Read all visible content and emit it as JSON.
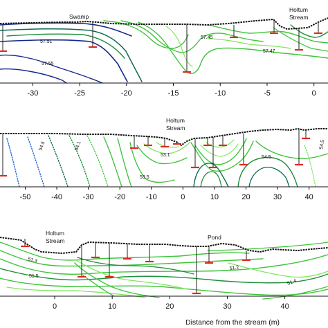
{
  "chart_data": [
    {
      "type": "contour",
      "panel": "top",
      "x_ticks": [
        -30,
        -25,
        -20,
        -15,
        -10,
        -5,
        0
      ],
      "xlim": [
        -33.5,
        1.5
      ],
      "features": [
        "Swamp",
        "Holtum\nStream"
      ],
      "contour_labels": [
        "57.51",
        "57.45",
        "57.47",
        "57.55"
      ],
      "grid": false
    },
    {
      "type": "contour",
      "panel": "middle",
      "x_ticks": [
        -50,
        -40,
        -30,
        -20,
        -10,
        0,
        10,
        20,
        30,
        40
      ],
      "xlim": [
        -58,
        46
      ],
      "features": [
        "Holtum\nStream"
      ],
      "contour_labels": [
        "54.5",
        "54.1",
        "53.1",
        "53.5",
        "54.5",
        "54.5"
      ],
      "grid": false
    },
    {
      "type": "contour",
      "panel": "bottom",
      "x_ticks": [
        0,
        10,
        20,
        30,
        40
      ],
      "xlim": [
        -9.5,
        47.5
      ],
      "features": [
        "Holtum\nStream",
        "Pond"
      ],
      "contour_labels": [
        "51.3",
        "51.5",
        "51.2",
        "51.4"
      ],
      "xlabel": "Distance from the stream (m)",
      "grid": false
    }
  ],
  "colors": {
    "dark_blue": "#14288c",
    "blue": "#2a6ad8",
    "teal": "#0e6b52",
    "dark_green": "#1f8f3a",
    "green": "#3fc43b",
    "light_green": "#7de85a",
    "piezometer": "#e0281e"
  }
}
